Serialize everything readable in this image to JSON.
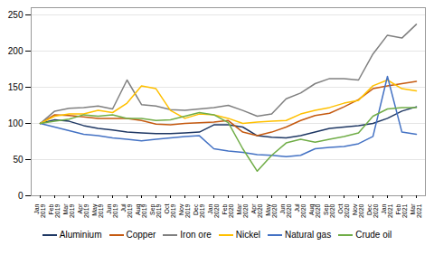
{
  "chart_data": {
    "type": "line",
    "categories": [
      "Jan\n2019",
      "Feb\n2019",
      "Mar\n2019",
      "Apr\n2019",
      "May\n2019",
      "Jun\n2019",
      "Jul\n2019",
      "Aug\n2019",
      "Sep\n2019",
      "Oct\n2019",
      "Nov\n2019",
      "Dec\n2019",
      "Jan\n2020",
      "Feb\n2020",
      "Mar\n2020",
      "Apr\n2020",
      "May\n2020",
      "Jun\n2020",
      "Jul\n2020",
      "Aug\n2020",
      "Sep\n2020",
      "Oct\n2020",
      "Nov\n2020",
      "Dec\n2020",
      "Jan\n2021",
      "Feb\n2021",
      "Mar\n2021"
    ],
    "series": [
      {
        "name": "Aluminium",
        "color": "#1f3864",
        "values": [
          100,
          105,
          103,
          97,
          93,
          91,
          88,
          87,
          86,
          86,
          87,
          88,
          98,
          98,
          95,
          83,
          81,
          80,
          83,
          88,
          93,
          95,
          97,
          100,
          107,
          117,
          123
        ]
      },
      {
        "name": "Copper",
        "color": "#c55a11",
        "values": [
          100,
          112,
          111,
          109,
          107,
          107,
          107,
          104,
          99,
          98,
          100,
          101,
          102,
          104,
          88,
          83,
          88,
          95,
          104,
          111,
          114,
          123,
          133,
          148,
          152,
          155,
          158
        ]
      },
      {
        "name": "Iron ore",
        "color": "#808080",
        "values": [
          100,
          117,
          121,
          122,
          124,
          120,
          160,
          126,
          124,
          119,
          118,
          120,
          122,
          125,
          118,
          110,
          113,
          134,
          142,
          155,
          162,
          162,
          160,
          196,
          222,
          218,
          237
        ]
      },
      {
        "name": "Nickel",
        "color": "#ffc000",
        "values": [
          100,
          110,
          113,
          113,
          118,
          115,
          128,
          152,
          148,
          118,
          107,
          113,
          112,
          107,
          100,
          102,
          103,
          104,
          113,
          118,
          122,
          128,
          132,
          152,
          160,
          148,
          145
        ]
      },
      {
        "name": "Natural gas",
        "color": "#4472c4",
        "values": [
          100,
          95,
          90,
          85,
          83,
          80,
          78,
          76,
          78,
          80,
          82,
          83,
          65,
          62,
          60,
          57,
          56,
          54,
          56,
          65,
          67,
          68,
          72,
          82,
          165,
          88,
          85
        ]
      },
      {
        "name": "Crude oil",
        "color": "#70ad47",
        "values": [
          100,
          103,
          106,
          112,
          110,
          112,
          107,
          107,
          104,
          105,
          110,
          115,
          112,
          101,
          65,
          34,
          56,
          73,
          78,
          74,
          78,
          82,
          87,
          110,
          120,
          122,
          122
        ]
      }
    ],
    "ylim": [
      0,
      260
    ],
    "yticks": [
      0,
      50,
      100,
      150,
      200,
      250
    ],
    "grid": true,
    "legend": "bottom"
  }
}
